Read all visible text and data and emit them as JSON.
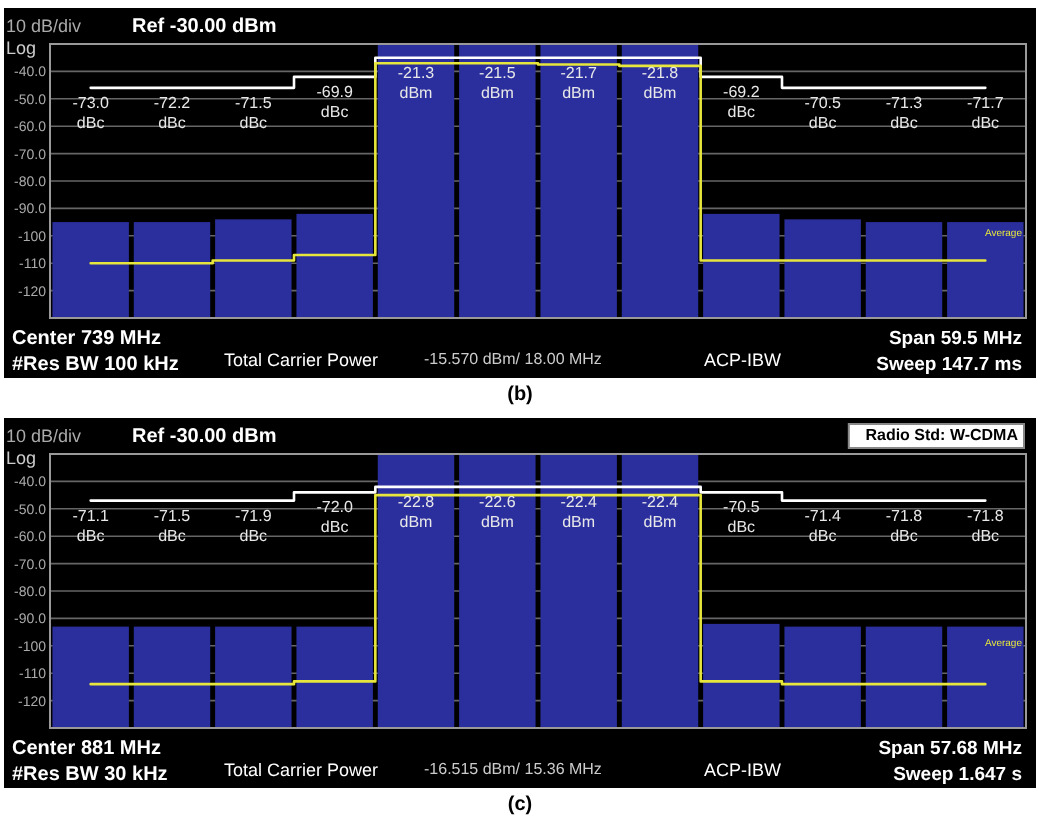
{
  "chart_data": [
    {
      "type": "bar",
      "title": "(b)",
      "categories": [
        null,
        null,
        null,
        null,
        null,
        null,
        null,
        null,
        null,
        null,
        null,
        null
      ],
      "ylim": [
        -130,
        -30
      ],
      "yticks": [
        {
          "value": -40,
          "label": "-40.0"
        },
        {
          "value": -50,
          "label": "-50.0"
        },
        {
          "value": -60,
          "label": "-60.0"
        },
        {
          "value": -70,
          "label": "-70.0"
        },
        {
          "value": -80,
          "label": "-80.0"
        },
        {
          "value": -90,
          "label": "-90.0"
        },
        {
          "value": -100,
          "label": "-100"
        },
        {
          "value": -110,
          "label": "-110"
        },
        {
          "value": -120,
          "label": "-120"
        }
      ],
      "grid": "y",
      "annotations": [
        "10 dB/div",
        "Ref -30.00 dBm",
        "Log",
        "Center 739 MHz",
        "#Res BW 100 kHz",
        "Total Carrier Power",
        "-15.570 dBm/ 18.00 MHz",
        "ACP-IBW",
        "Span 59.5 MHz",
        "Sweep 147.7 ms",
        "Average",
        "-73.0 dBc",
        "-72.2 dBc",
        "-71.5 dBc",
        "-69.9 dBc",
        "-21.3 dBm",
        "-21.5 dBm",
        "-21.7 dBm",
        "-21.8 dBm",
        "-69.2 dBc",
        "-70.5 dBc",
        "-71.3 dBc",
        "-71.7 dBc"
      ],
      "series": [
        {
          "color": "#2b2f9e",
          "base": [
            -130,
            -130,
            -130,
            -130,
            -130,
            -130,
            -130,
            -130,
            -130,
            -130,
            -130,
            -130
          ],
          "values": [
            35,
            35,
            36,
            38,
            100,
            100,
            100,
            100,
            38,
            36,
            35,
            35
          ]
        },
        {
          "type": "step",
          "color": "#ffffff",
          "values": [
            -46,
            -46,
            -46,
            -42,
            -35,
            -35,
            -35,
            -35,
            -42,
            -46,
            -46,
            -46
          ]
        },
        {
          "type": "step",
          "color": "#e6e63c",
          "values": [
            -110,
            -110,
            -109,
            -107,
            -37,
            -37,
            -37.5,
            -38,
            -109,
            -109,
            -109,
            -109
          ]
        }
      ]
    },
    {
      "type": "bar",
      "title": "(c)",
      "categories": [
        null,
        null,
        null,
        null,
        null,
        null,
        null,
        null,
        null,
        null,
        null,
        null
      ],
      "ylim": [
        -130,
        -30
      ],
      "yticks": [
        {
          "value": -40,
          "label": "-40.0"
        },
        {
          "value": -50,
          "label": "-50.0"
        },
        {
          "value": -60,
          "label": "-60.0"
        },
        {
          "value": -70,
          "label": "-70.0"
        },
        {
          "value": -80,
          "label": "-80.0"
        },
        {
          "value": -90,
          "label": "-90.0"
        },
        {
          "value": -100,
          "label": "-100"
        },
        {
          "value": -110,
          "label": "-110"
        },
        {
          "value": -120,
          "label": "-120"
        }
      ],
      "grid": "y",
      "annotations": [
        "10 dB/div",
        "Ref -30.00 dBm",
        "Log",
        "Center 881 MHz",
        "#Res BW 30 kHz",
        "Total Carrier Power",
        "-16.515 dBm/ 15.36 MHz",
        "ACP-IBW",
        "Span 57.68 MHz",
        "Sweep 1.647 s",
        "Average",
        "Radio Std: W-CDMA",
        "-71.1 dBc",
        "-71.5 dBc",
        "-71.9 dBc",
        "-72.0 dBc",
        "-22.8 dBm",
        "-22.6 dBm",
        "-22.4 dBm",
        "-22.4 dBm",
        "-70.5 dBc",
        "-71.4 dBc",
        "-71.8 dBc",
        "-71.8 dBc"
      ],
      "series": [
        {
          "color": "#2b2f9e",
          "base": [
            -130,
            -130,
            -130,
            -130,
            -130,
            -130,
            -130,
            -130,
            -130,
            -130,
            -130,
            -130
          ],
          "values": [
            37,
            37,
            37,
            37,
            100,
            100,
            100,
            100,
            38,
            37,
            37,
            37
          ]
        },
        {
          "type": "step",
          "color": "#ffffff",
          "values": [
            -47,
            -47,
            -47,
            -44,
            -42,
            -42,
            -42,
            -42,
            -44,
            -47,
            -47,
            -47
          ]
        },
        {
          "type": "step",
          "color": "#e6e63c",
          "values": [
            -114,
            -114,
            -114,
            -113,
            -45,
            -45,
            -45,
            -45,
            -113,
            -114,
            -114,
            -114
          ]
        }
      ]
    }
  ]
}
